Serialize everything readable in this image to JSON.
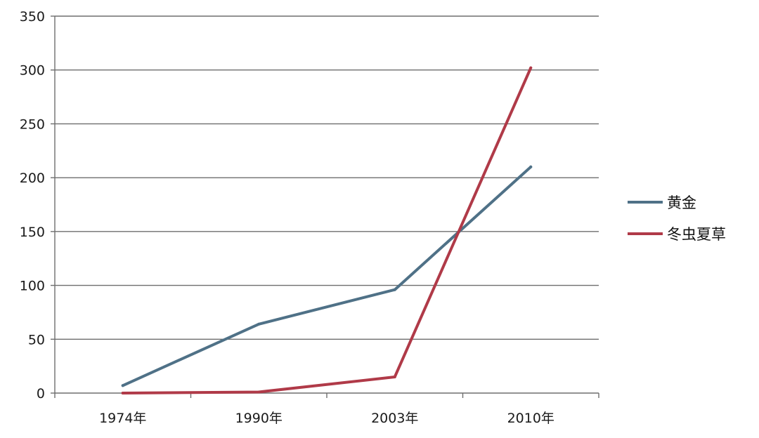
{
  "chart_data": {
    "type": "line",
    "title": "",
    "xlabel": "",
    "ylabel": "",
    "categories": [
      "1974年",
      "1990年",
      "2003年",
      "2010年"
    ],
    "series": [
      {
        "name": "黄金",
        "values": [
          7,
          64,
          96,
          210
        ],
        "color": "#4f7187"
      },
      {
        "name": "冬虫夏草",
        "values": [
          0,
          1,
          15,
          302
        ],
        "color": "#b03a48"
      }
    ],
    "ylim": [
      0,
      350
    ],
    "yticks": [
      0,
      50,
      100,
      150,
      200,
      250,
      300,
      350
    ],
    "grid": true,
    "legend": "right"
  }
}
